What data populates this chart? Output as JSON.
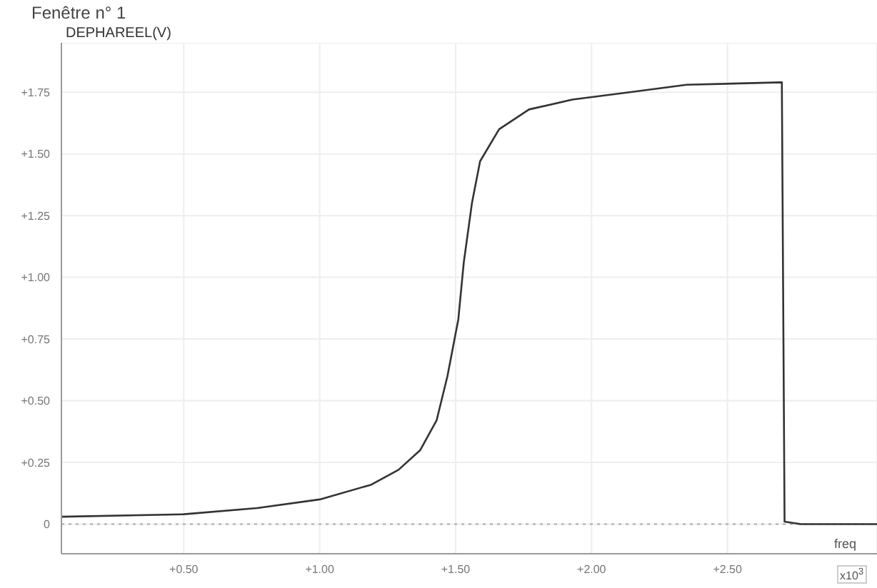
{
  "chart_data": {
    "type": "line",
    "title": "Fenêtre n° 1",
    "ylabel": "DEPHAREEL(V)",
    "xlabel": "freq",
    "annotations": [
      "x10$^{3}$"
    ],
    "x": [
      0.05,
      0.5,
      0.77,
      1.0,
      1.19,
      1.29,
      1.37,
      1.43,
      1.47,
      1.51,
      1.53,
      1.56,
      1.59,
      1.66,
      1.77,
      1.93,
      2.14,
      2.35,
      2.7,
      2.71,
      2.77,
      3.05
    ],
    "series": [
      {
        "color": "#333333",
        "values": [
          0.03,
          0.04,
          0.065,
          0.1,
          0.16,
          0.22,
          0.3,
          0.42,
          0.6,
          0.83,
          1.06,
          1.3,
          1.47,
          1.6,
          1.68,
          1.72,
          1.75,
          1.78,
          1.79,
          0.01,
          0.0,
          0.0
        ]
      }
    ],
    "xlim": [
      0.05,
      3.05
    ],
    "ylim": [
      -0.12,
      1.95
    ],
    "xticks": [
      {
        "value": 0.5,
        "label": "+0.50"
      },
      {
        "value": 1.0,
        "label": "+1.00"
      },
      {
        "value": 1.5,
        "label": "+1.50"
      },
      {
        "value": 2.0,
        "label": "+2.00"
      },
      {
        "value": 2.5,
        "label": "+2.50"
      }
    ],
    "yticks": [
      {
        "value": 0,
        "label": "0"
      },
      {
        "value": 0.25,
        "label": "+0.25"
      },
      {
        "value": 0.5,
        "label": "+0.50"
      },
      {
        "value": 0.75,
        "label": "+0.75"
      },
      {
        "value": 1.0,
        "label": "+1.00"
      },
      {
        "value": 1.25,
        "label": "+1.25"
      },
      {
        "value": 1.5,
        "label": "+1.50"
      },
      {
        "value": 1.75,
        "label": "+1.75"
      }
    ],
    "ref_lines": [
      {
        "axis": "y",
        "value": 0,
        "color": "#aaaaaa",
        "line_style": "dotted"
      }
    ],
    "grid": true,
    "marker": "none",
    "line_style": "solid"
  }
}
